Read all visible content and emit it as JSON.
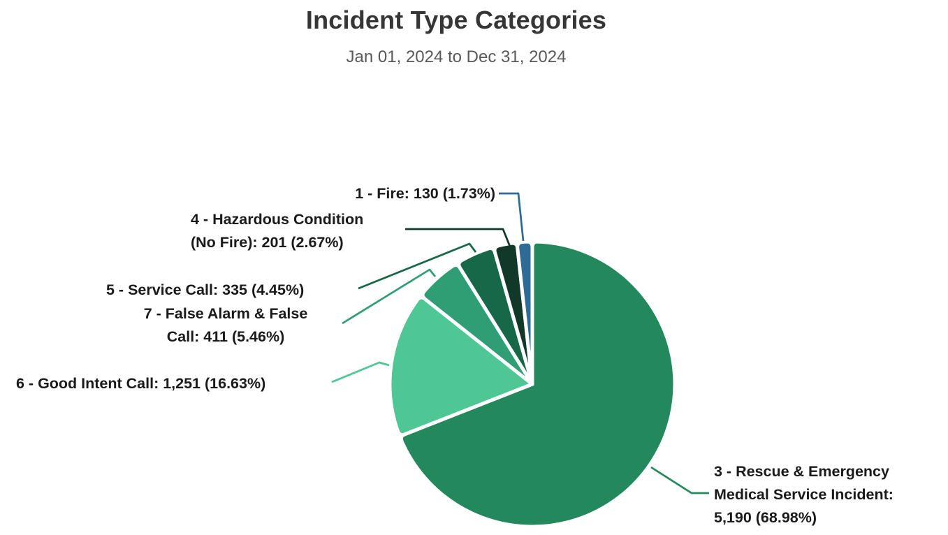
{
  "chart": {
    "title": "Incident Type Categories",
    "subtitle": "Jan 01, 2024 to Dec 31, 2024",
    "title_color": "#363636",
    "subtitle_color": "#595959",
    "background_color": "#ffffff",
    "separator_color": "#ffffff"
  },
  "chart_data": {
    "type": "pie",
    "title": "Incident Type Categories",
    "subtitle": "Jan 01, 2024 to Dec 31, 2024",
    "legend": "none",
    "label_style": "callout-with-leader-lines",
    "start_angle": "12 o'clock",
    "direction": "clockwise",
    "slices": [
      {
        "key": "rescue-ems",
        "category": "3 - Rescue & Emergency Medical Service Incident",
        "value": 5190,
        "value_display": "5,190",
        "percent": 68.98,
        "color": "#23885C",
        "label": "3 - Rescue & Emergency\nMedical Service Incident:\n5,190 (68.98%)"
      },
      {
        "key": "good-intent",
        "category": "6 - Good Intent Call",
        "value": 1251,
        "value_display": "1,251",
        "percent": 16.63,
        "color": "#4EC795",
        "label": "6 - Good Intent Call: 1,251 (16.63%)"
      },
      {
        "key": "false-alarm",
        "category": "7 - False Alarm & False Call",
        "value": 411,
        "value_display": "411",
        "percent": 5.46,
        "color": "#2F9E74",
        "label": "7 - False Alarm & False\nCall: 411 (5.46%)"
      },
      {
        "key": "service-call",
        "category": "5 - Service Call",
        "value": 335,
        "value_display": "335",
        "percent": 4.45,
        "color": "#176849",
        "label": "5 - Service Call: 335 (4.45%)"
      },
      {
        "key": "hazardous",
        "category": "4 - Hazardous Condition (No Fire)",
        "value": 201,
        "value_display": "201",
        "percent": 2.67,
        "color": "#123829",
        "label": "4 - Hazardous Condition\n(No Fire): 201 (2.67%)"
      },
      {
        "key": "fire",
        "category": "1 - Fire",
        "value": 130,
        "value_display": "130",
        "percent": 1.73,
        "color": "#2E6B96",
        "label": "1 - Fire: 130 (1.73%)"
      }
    ]
  }
}
